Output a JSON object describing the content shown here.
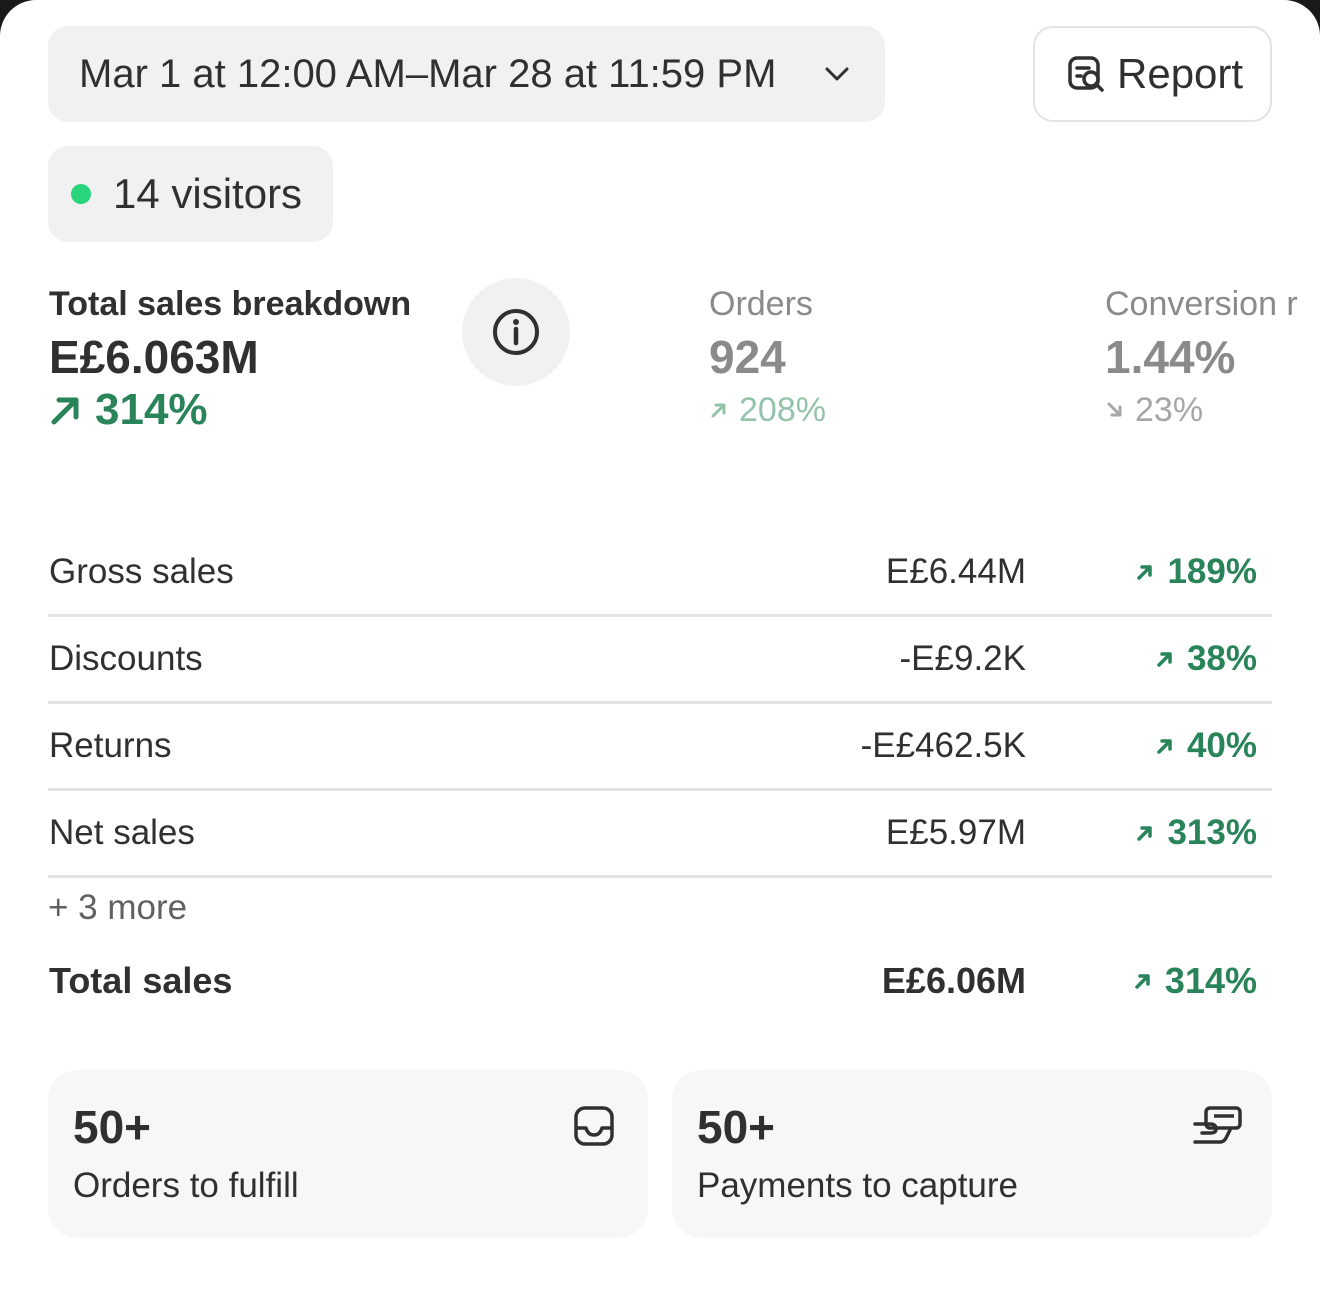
{
  "header": {
    "date_range": "Mar 1 at 12:00 AM–Mar 28 at 11:59 PM",
    "report_label": "Report"
  },
  "visitors": {
    "label": "14 visitors",
    "status_color": "#29d57c"
  },
  "metrics": {
    "total_sales": {
      "label": "Total sales breakdown",
      "value": "E£6.063M",
      "delta": "314%",
      "trend": "up"
    },
    "orders": {
      "label": "Orders",
      "value": "924",
      "delta": "208%",
      "trend": "up"
    },
    "conversion": {
      "label": "Conversion r",
      "value": "1.44%",
      "delta": "23%",
      "trend": "down"
    }
  },
  "breakdown": {
    "rows": [
      {
        "name": "Gross sales",
        "amount": "E£6.44M",
        "delta": "189%",
        "trend": "up"
      },
      {
        "name": "Discounts",
        "amount": "-E£9.2K",
        "delta": "38%",
        "trend": "up"
      },
      {
        "name": "Returns",
        "amount": "-E£462.5K",
        "delta": "40%",
        "trend": "up"
      },
      {
        "name": "Net sales",
        "amount": "E£5.97M",
        "delta": "313%",
        "trend": "up"
      }
    ],
    "more_label": "+ 3 more",
    "total": {
      "name": "Total sales",
      "amount": "E£6.06M",
      "delta": "314%",
      "trend": "up"
    }
  },
  "tiles": [
    {
      "count": "50+",
      "label": "Orders to fulfill",
      "icon": "inbox-icon"
    },
    {
      "count": "50+",
      "label": "Payments to capture",
      "icon": "hand-card-icon"
    }
  ],
  "colors": {
    "positive": "#29845a",
    "positive_muted": "#94c3ab",
    "neutral": "#8a8a8a"
  }
}
